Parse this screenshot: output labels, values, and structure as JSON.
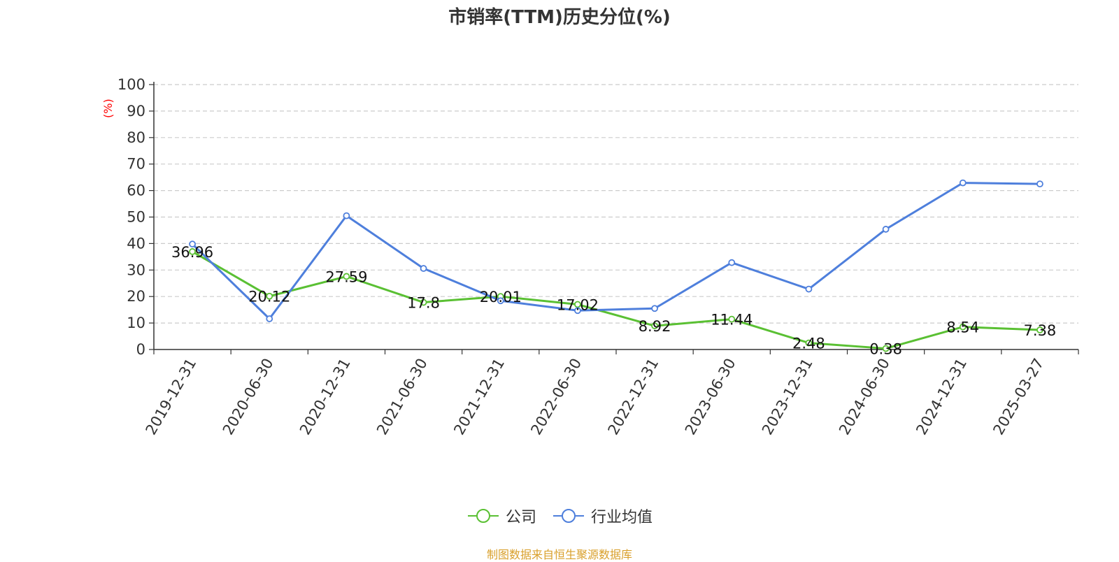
{
  "chart_data": {
    "type": "line",
    "title": "市销率(TTM)历史分位(%)",
    "ylabel": "(%)",
    "ylim": [
      0,
      100
    ],
    "yticks": [
      0,
      10,
      20,
      30,
      40,
      50,
      60,
      70,
      80,
      90,
      100
    ],
    "grid": true,
    "legend_position": "bottom",
    "categories": [
      "2019-12-31",
      "2020-06-30",
      "2020-12-31",
      "2021-06-30",
      "2021-12-31",
      "2022-06-30",
      "2022-12-31",
      "2023-06-30",
      "2023-12-31",
      "2024-06-30",
      "2024-12-31",
      "2025-03-27"
    ],
    "series": [
      {
        "name": "公司",
        "color": "#5ac033",
        "values": [
          36.96,
          20.12,
          27.59,
          17.8,
          20.01,
          17.02,
          8.92,
          11.44,
          2.48,
          0.38,
          8.54,
          7.38
        ],
        "show_labels": true
      },
      {
        "name": "行业均值",
        "color": "#4e7fdc",
        "values": [
          39.8,
          11.6,
          50.5,
          30.6,
          18.4,
          14.7,
          15.5,
          32.8,
          22.8,
          45.4,
          62.9,
          62.5
        ],
        "show_labels": false
      }
    ]
  },
  "source_note": "制图数据来自恒生聚源数据库",
  "colors": {
    "title": "#333333",
    "ylabel": "#ff0000",
    "source": "#d9a02c",
    "grid": "#cccccc",
    "axis": "#333333"
  }
}
